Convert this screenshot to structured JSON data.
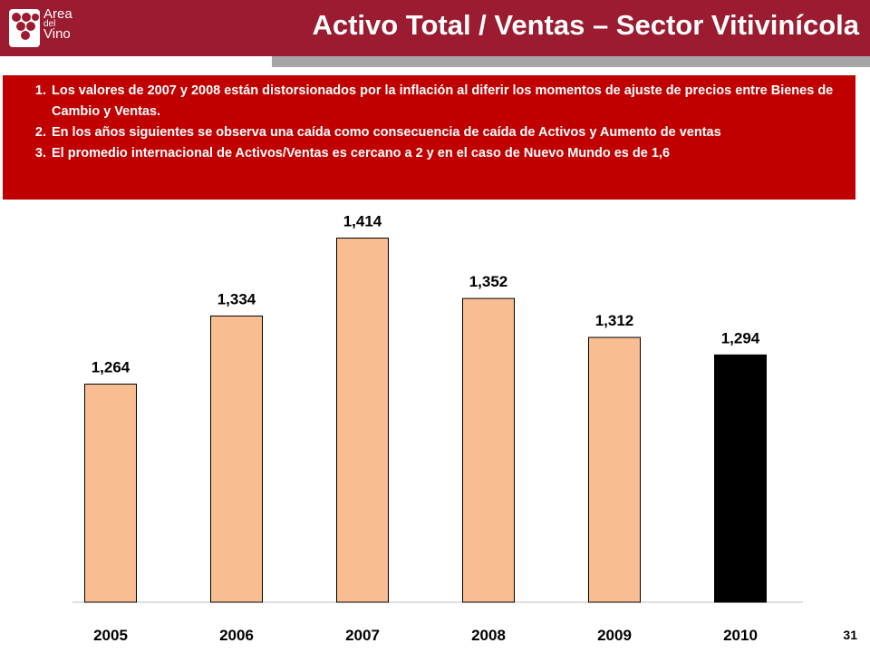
{
  "header": {
    "title": "Activo Total / Ventas – Sector Vitivinícola",
    "logo": {
      "line1": "Area",
      "line2": "del",
      "line3": "Vino"
    }
  },
  "notes": [
    "Los valores de 2007 y 2008 están distorsionados  por la inflación al diferir los momentos de ajuste de precios entre Bienes de Cambio y Ventas.",
    "En los años siguientes se observa una caída como consecuencia de caída de Activos  y Aumento de ventas",
    "El promedio internacional de Activos/Ventas es cercano a 2 y en el caso de Nuevo Mundo es de  1,6"
  ],
  "chart_data": {
    "type": "bar",
    "categories": [
      "2005",
      "2006",
      "2007",
      "2008",
      "2009",
      "2010"
    ],
    "values": [
      1.264,
      1.334,
      1.414,
      1.352,
      1.312,
      1.294
    ],
    "data_labels": [
      "1,264",
      "1,334",
      "1,414",
      "1,352",
      "1,312",
      "1,294"
    ],
    "colors": [
      "#f8be92",
      "#f8be92",
      "#f8be92",
      "#f8be92",
      "#f8be92",
      "#000000"
    ],
    "ylim": [
      1.04,
      1.435
    ],
    "grid": false,
    "title": "",
    "xlabel": "",
    "ylabel": ""
  },
  "slide_number": "31"
}
